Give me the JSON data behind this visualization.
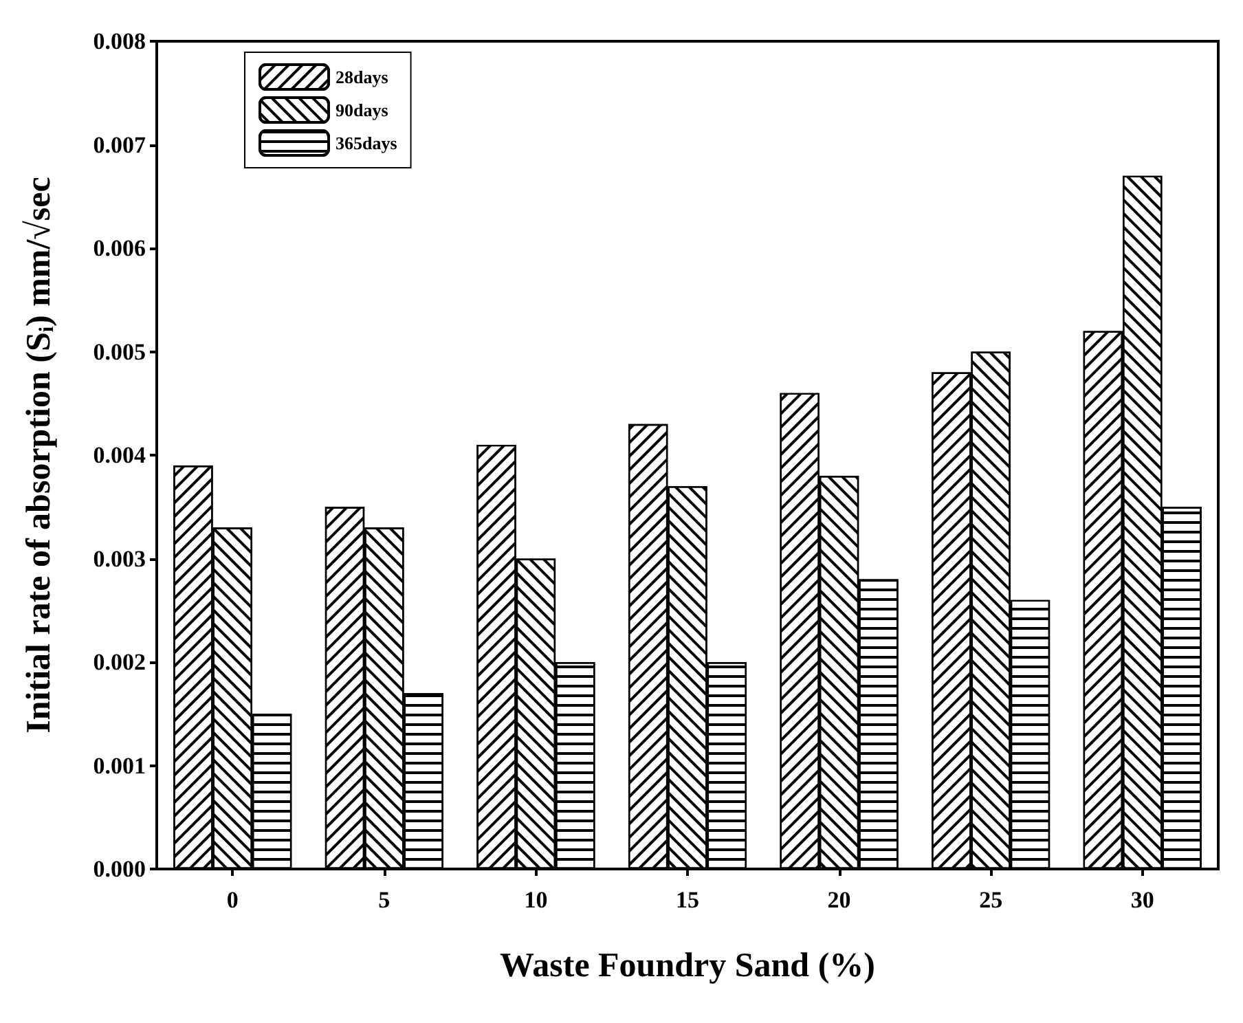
{
  "chart_data": {
    "type": "bar",
    "xlabel": "Waste Foundry Sand (%)",
    "ylabel": "Initial rate of absorption (S$_{i}$) mm/√sec",
    "categories": [
      "0",
      "5",
      "10",
      "15",
      "20",
      "25",
      "30"
    ],
    "series": [
      {
        "name": "28days",
        "color": "#000000",
        "values": [
          0.0039,
          0.0035,
          0.0041,
          0.0043,
          0.0046,
          0.0048,
          0.0052
        ]
      },
      {
        "name": "90days",
        "color": "#000000",
        "values": [
          0.0033,
          0.0033,
          0.003,
          0.0037,
          0.0038,
          0.005,
          0.0067
        ]
      },
      {
        "name": "365days",
        "color": "#000000",
        "values": [
          0.0015,
          0.0017,
          0.002,
          0.002,
          0.0028,
          0.0026,
          0.0035
        ]
      }
    ],
    "ylim": [
      0,
      0.008
    ],
    "yticks": [
      {
        "value": 0,
        "label": "0.000"
      },
      {
        "value": 0.001,
        "label": "0.001"
      },
      {
        "value": 0.002,
        "label": "0.002"
      },
      {
        "value": 0.003,
        "label": "0.003"
      },
      {
        "value": 0.004,
        "label": "0.004"
      },
      {
        "value": 0.005,
        "label": "0.005"
      },
      {
        "value": 0.006,
        "label": "0.006"
      },
      {
        "value": 0.007,
        "label": "0.007"
      },
      {
        "value": 0.008,
        "label": "0.008"
      }
    ],
    "legend": "top left",
    "grid": false
  }
}
